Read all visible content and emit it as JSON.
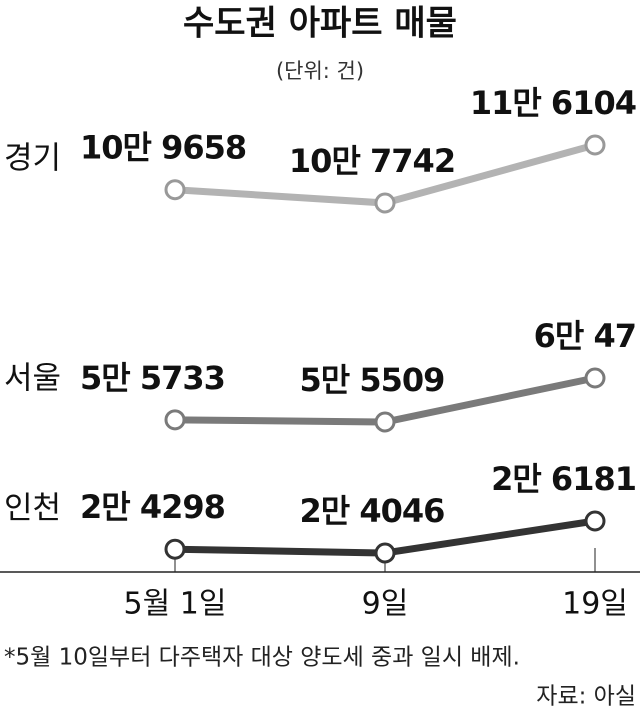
{
  "chart_data": {
    "type": "line",
    "title": "수도권 아파트 매물",
    "subtitle": "(단위: 건)",
    "note": "*5월 10일부터 다주택자 대상 양도세 중과 일시 배제.",
    "source": "자료: 아실",
    "categories": [
      "5월 1일",
      "9일",
      "19일"
    ],
    "series": [
      {
        "name": "경기",
        "color": "#b3b3b3",
        "values": [
          109658,
          107742,
          116104
        ],
        "value_labels": [
          "10만 9658",
          "10만 7742",
          "11만 6104"
        ]
      },
      {
        "name": "서울",
        "color": "#7a7a7a",
        "values": [
          55733,
          55509,
          60047
        ],
        "value_labels": [
          "5만 5733",
          "5만 5509",
          "6만 47"
        ]
      },
      {
        "name": "인천",
        "color": "#333333",
        "values": [
          24298,
          24046,
          26181
        ],
        "value_labels": [
          "2만 4298",
          "2만 4046",
          "2만 6181"
        ]
      }
    ]
  }
}
